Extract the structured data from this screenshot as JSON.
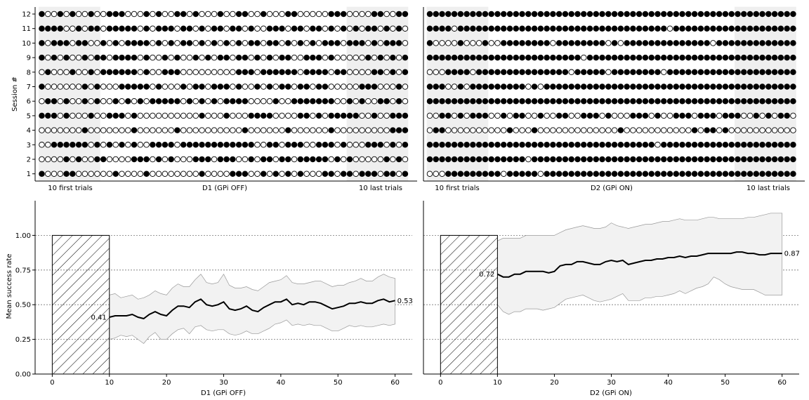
{
  "figure": {
    "ylabel_top": "Session #",
    "ylabel_bottom": "Mean success rate"
  },
  "chart_data": [
    {
      "type": "scatter",
      "panel": "D1 raster",
      "xlabel": "D1 (GPi OFF)",
      "xlabel_left": "10 first trials",
      "xlabel_right": "10 last trials",
      "ylabel": "Session #",
      "sessions": [
        12,
        11,
        10,
        9,
        8,
        7,
        6,
        5,
        4,
        3,
        2,
        1
      ],
      "trials_per_session": 60,
      "highlight_trials": [
        [
          1,
          10
        ],
        [
          51,
          60
        ]
      ],
      "marker_legend": {
        "1": "filled circle (success)",
        "0": "open circle (failure)"
      },
      "rows": [
        "100101001001110001010011010001001100100011000001110000110011",
        "111100101101111101011101101011011010011101101101010101101010",
        "101110110010101111010101101010101011011010101011101110101110",
        "101010010110111101001010010101101101010110011101000001010101",
        "010001001011111101001110000000001110111111011110110000110101",
        "100000010100011111010001011011101001010110110110000011100010",
        "011010010100101010111110101010111100001001111111001010011010",
        "111010001001110100000000001000100011110000110101111100100111",
        "000000010000000100000010000000000100000010000001000000000111",
        "001111110101010100111101111111111110011011100111010001110101",
        "000010100110000111010100011101110010110110111110101000001010",
        "100011000000100001000000001000011100101010100011011011101101"
      ]
    },
    {
      "type": "scatter",
      "panel": "D2 raster",
      "xlabel": "D2 (GPi ON)",
      "xlabel_left": "10 first trials",
      "xlabel_right": "10 last trials",
      "sessions": [
        12,
        11,
        10,
        9,
        8,
        7,
        6,
        5,
        4,
        3,
        2,
        1
      ],
      "trials_per_session": 60,
      "highlight_trials": [
        [
          1,
          10
        ],
        [
          51,
          60
        ]
      ],
      "rows": [
        "111111111111111111111111111111111111111111111111111111111111",
        "111101111111111111111111111111111111111011111111111111111111",
        "100001000100111111110111111110101111111111111101111111111111",
        "111111111111111111111111101111111111111111111111111111111111",
        "000111101111111111111110111110111111110111111111111111111111",
        "111001011111111101011111111111111111111111111111111111111111",
        "111111111111111111111111111111111111111111111111111111111111",
        "001101011100101100100110011101000111010011101110111001010110",
        "011000000000010001000000000000010000000000010110100000000000",
        "111111111111111111111111111111111111101111111111111111111111",
        "111111111111111101111111111111111111111111111111111111111111",
        "000111111111011111011111111111111111111111111111111111111111"
      ]
    },
    {
      "type": "line",
      "panel": "D1 success",
      "xlabel": "D1 (GPi OFF)",
      "ylabel": "Mean success rate",
      "xlim": [
        -3,
        63
      ],
      "ylim": [
        0,
        1.25
      ],
      "xticks": [
        0,
        10,
        20,
        30,
        40,
        50,
        60
      ],
      "yticks": [
        "0.00",
        "0.25",
        "0.50",
        "0.75",
        "1.00"
      ],
      "hlines": [
        0.25,
        0.5,
        0.75,
        1.0
      ],
      "hatched_region": {
        "x": [
          0,
          10
        ],
        "y": [
          0,
          1.0
        ]
      },
      "start_label": "0.41",
      "end_label": "0.53",
      "x": [
        10,
        11,
        12,
        13,
        14,
        15,
        16,
        17,
        18,
        19,
        20,
        21,
        22,
        23,
        24,
        25,
        26,
        27,
        28,
        29,
        30,
        31,
        32,
        33,
        34,
        35,
        36,
        37,
        38,
        39,
        40,
        41,
        42,
        43,
        44,
        45,
        46,
        47,
        48,
        49,
        50,
        51,
        52,
        53,
        54,
        55,
        56,
        57,
        58,
        59,
        60
      ],
      "mean": [
        0.41,
        0.42,
        0.42,
        0.42,
        0.43,
        0.41,
        0.4,
        0.43,
        0.45,
        0.43,
        0.42,
        0.46,
        0.49,
        0.49,
        0.48,
        0.52,
        0.54,
        0.5,
        0.49,
        0.5,
        0.52,
        0.47,
        0.46,
        0.47,
        0.49,
        0.46,
        0.45,
        0.48,
        0.5,
        0.52,
        0.52,
        0.54,
        0.5,
        0.51,
        0.5,
        0.52,
        0.52,
        0.51,
        0.49,
        0.47,
        0.48,
        0.49,
        0.51,
        0.51,
        0.52,
        0.51,
        0.51,
        0.53,
        0.54,
        0.52,
        0.53
      ],
      "upper": [
        0.57,
        0.58,
        0.55,
        0.56,
        0.57,
        0.54,
        0.55,
        0.57,
        0.6,
        0.58,
        0.57,
        0.62,
        0.65,
        0.63,
        0.63,
        0.68,
        0.72,
        0.66,
        0.65,
        0.66,
        0.72,
        0.64,
        0.62,
        0.62,
        0.63,
        0.61,
        0.6,
        0.63,
        0.66,
        0.67,
        0.68,
        0.71,
        0.66,
        0.65,
        0.65,
        0.66,
        0.67,
        0.67,
        0.65,
        0.63,
        0.64,
        0.64,
        0.66,
        0.67,
        0.69,
        0.67,
        0.67,
        0.7,
        0.72,
        0.7,
        0.69
      ],
      "lower": [
        0.25,
        0.26,
        0.28,
        0.27,
        0.28,
        0.25,
        0.22,
        0.27,
        0.3,
        0.25,
        0.25,
        0.29,
        0.32,
        0.33,
        0.29,
        0.34,
        0.35,
        0.32,
        0.31,
        0.32,
        0.32,
        0.29,
        0.28,
        0.29,
        0.31,
        0.29,
        0.29,
        0.31,
        0.33,
        0.36,
        0.37,
        0.39,
        0.35,
        0.36,
        0.35,
        0.36,
        0.35,
        0.35,
        0.33,
        0.31,
        0.31,
        0.33,
        0.35,
        0.34,
        0.35,
        0.34,
        0.34,
        0.35,
        0.36,
        0.35,
        0.36
      ]
    },
    {
      "type": "line",
      "panel": "D2 success",
      "xlabel": "D2 (GPi ON)",
      "xlim": [
        -3,
        63
      ],
      "ylim": [
        0,
        1.25
      ],
      "xticks": [
        0,
        10,
        20,
        30,
        40,
        50,
        60
      ],
      "hlines": [
        0.25,
        0.5,
        0.75,
        1.0
      ],
      "hatched_region": {
        "x": [
          0,
          10
        ],
        "y": [
          0,
          1.0
        ]
      },
      "start_label": "0.72",
      "end_label": "0.87",
      "x": [
        10,
        11,
        12,
        13,
        14,
        15,
        16,
        17,
        18,
        19,
        20,
        21,
        22,
        23,
        24,
        25,
        26,
        27,
        28,
        29,
        30,
        31,
        32,
        33,
        34,
        35,
        36,
        37,
        38,
        39,
        40,
        41,
        42,
        43,
        44,
        45,
        46,
        47,
        48,
        49,
        50,
        51,
        52,
        53,
        54,
        55,
        56,
        57,
        58,
        59,
        60
      ],
      "mean": [
        0.72,
        0.7,
        0.7,
        0.72,
        0.72,
        0.74,
        0.74,
        0.74,
        0.74,
        0.73,
        0.74,
        0.78,
        0.79,
        0.79,
        0.81,
        0.81,
        0.8,
        0.79,
        0.79,
        0.81,
        0.82,
        0.81,
        0.82,
        0.79,
        0.8,
        0.81,
        0.82,
        0.82,
        0.83,
        0.83,
        0.84,
        0.84,
        0.85,
        0.84,
        0.85,
        0.85,
        0.86,
        0.87,
        0.87,
        0.87,
        0.87,
        0.87,
        0.88,
        0.88,
        0.87,
        0.87,
        0.86,
        0.86,
        0.87,
        0.87,
        0.87
      ],
      "upper": [
        0.96,
        0.98,
        0.98,
        0.98,
        0.98,
        1.0,
        1.0,
        1.0,
        1.0,
        1.0,
        1.0,
        1.02,
        1.04,
        1.05,
        1.06,
        1.07,
        1.06,
        1.05,
        1.05,
        1.06,
        1.09,
        1.07,
        1.06,
        1.05,
        1.06,
        1.07,
        1.08,
        1.08,
        1.09,
        1.1,
        1.1,
        1.11,
        1.12,
        1.11,
        1.11,
        1.11,
        1.12,
        1.13,
        1.13,
        1.12,
        1.12,
        1.12,
        1.12,
        1.12,
        1.13,
        1.13,
        1.14,
        1.15,
        1.16,
        1.16,
        1.16
      ],
      "lower": [
        0.5,
        0.45,
        0.43,
        0.45,
        0.45,
        0.47,
        0.47,
        0.47,
        0.46,
        0.47,
        0.48,
        0.51,
        0.54,
        0.55,
        0.56,
        0.57,
        0.55,
        0.53,
        0.52,
        0.53,
        0.54,
        0.56,
        0.58,
        0.53,
        0.53,
        0.53,
        0.55,
        0.55,
        0.56,
        0.56,
        0.57,
        0.58,
        0.6,
        0.58,
        0.6,
        0.62,
        0.63,
        0.65,
        0.7,
        0.68,
        0.65,
        0.63,
        0.62,
        0.61,
        0.61,
        0.61,
        0.59,
        0.57,
        0.57,
        0.57,
        0.57
      ]
    }
  ]
}
